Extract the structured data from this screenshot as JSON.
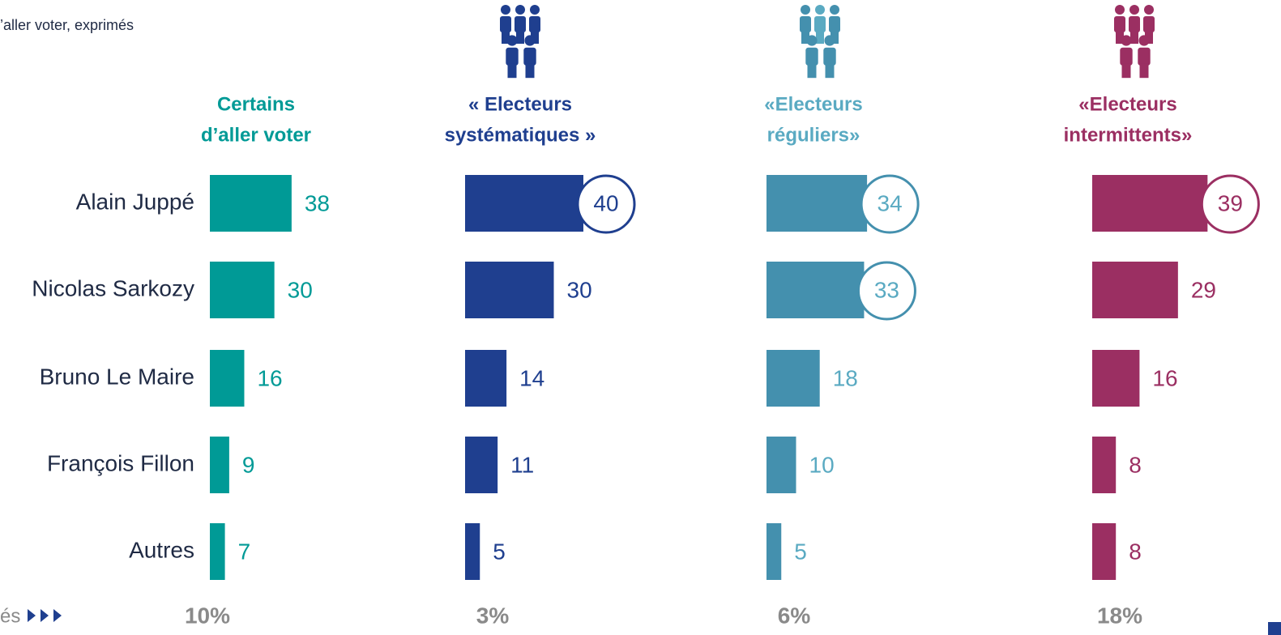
{
  "chart_data": {
    "type": "bar",
    "orientation": "horizontal",
    "subtitle": "’aller voter, exprimés",
    "footer_label": "és",
    "categories": [
      "Alain Juppé",
      "Nicolas Sarkozy",
      "Bruno Le Maire",
      "François Fillon",
      "Autres"
    ],
    "series": [
      {
        "name_lines": [
          "Certains",
          "d’aller voter"
        ],
        "color": "#009a96",
        "label_color": "#009a96",
        "values": [
          38,
          30,
          16,
          9,
          7
        ],
        "xlim": [
          0,
          55
        ],
        "highlighted": [],
        "footer_value": 10,
        "footer_value_label": "10%"
      },
      {
        "name_lines": [
          "« Electeurs",
          "systématiques »"
        ],
        "color": "#1f3f8f",
        "label_color": "#1f3f8f",
        "values": [
          40,
          30,
          14,
          11,
          5
        ],
        "xlim": [
          0,
          40
        ],
        "highlighted": [
          0
        ],
        "footer_value": 3,
        "footer_value_label": "3%"
      },
      {
        "name_lines": [
          "«Electeurs",
          "réguliers»"
        ],
        "color": "#4490ae",
        "label_color": "#5aaac2",
        "values": [
          34,
          33,
          18,
          10,
          5
        ],
        "xlim": [
          0,
          40
        ],
        "highlighted": [
          0,
          1
        ],
        "footer_value": 6,
        "footer_value_label": "6%"
      },
      {
        "name_lines": [
          "«Electeurs",
          "intermittents»"
        ],
        "color": "#9b2f62",
        "label_color": "#9b2f62",
        "values": [
          39,
          29,
          16,
          8,
          8
        ],
        "xlim": [
          0,
          40
        ],
        "highlighted": [
          0
        ],
        "footer_value": 18,
        "footer_value_label": "18%"
      }
    ]
  }
}
